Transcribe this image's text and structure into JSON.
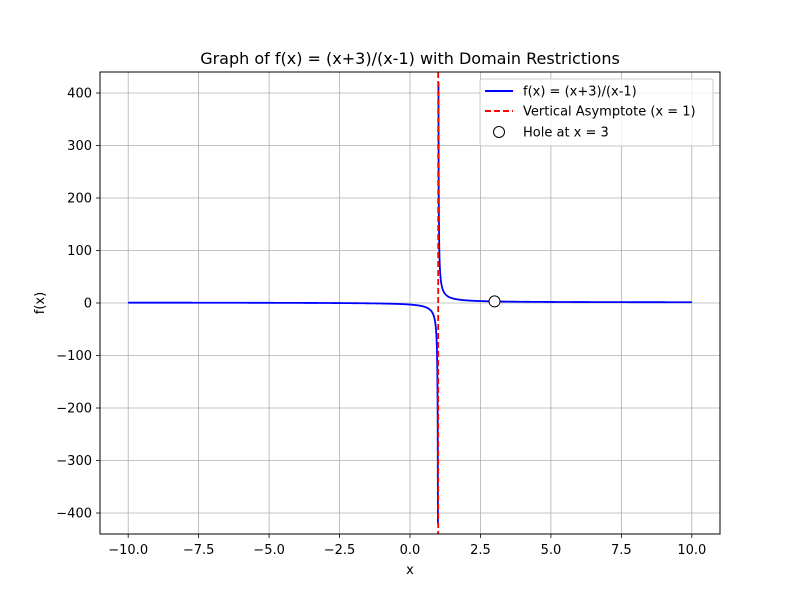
{
  "chart_data": {
    "type": "line",
    "title": "Graph of f(x) = (x+3)/(x-1) with Domain Restrictions",
    "xlabel": "x",
    "ylabel": "f(x)",
    "xlim": [
      -11,
      11
    ],
    "ylim": [
      -440,
      440
    ],
    "x_ticks": [
      -10,
      -7.5,
      -5,
      -2.5,
      0,
      2.5,
      5,
      7.5,
      10
    ],
    "x_tick_labels": [
      "−10.0",
      "−7.5",
      "−5.0",
      "−2.5",
      "0.0",
      "2.5",
      "5.0",
      "7.5",
      "10.0"
    ],
    "y_ticks": [
      -400,
      -300,
      -200,
      -100,
      0,
      100,
      200,
      300,
      400
    ],
    "y_tick_labels": [
      "−400",
      "−300",
      "−200",
      "−100",
      "0",
      "100",
      "200",
      "300",
      "400"
    ],
    "grid": true,
    "legend_position": "top-right",
    "function": {
      "name": "f(x) = (x+3)/(x-1)",
      "x_range": [
        -10,
        10
      ],
      "color": "#0000ff",
      "clip_y": [
        -420,
        420
      ]
    },
    "asymptote": {
      "name": "Vertical Asymptote (x = 1)",
      "x": 1,
      "color": "#ff0000",
      "style": "dashed"
    },
    "hole": {
      "name": "Hole at x = 3",
      "x": 3,
      "y": 3,
      "marker": "open-circle"
    }
  }
}
